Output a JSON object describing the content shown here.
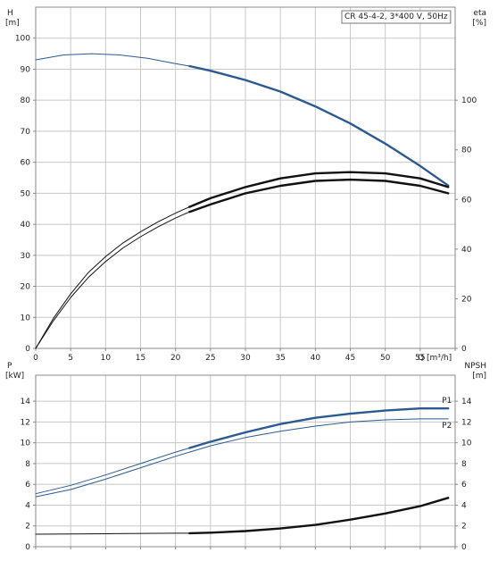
{
  "chart_data": [
    {
      "id": "top",
      "type": "line",
      "title_box": "CR 45-4-2, 3*400 V, 50Hz",
      "xlabel": "Q [m³/h]",
      "x_ticks": [
        0,
        5,
        10,
        15,
        20,
        25,
        30,
        35,
        40,
        45,
        50,
        55
      ],
      "xlim": [
        0,
        60
      ],
      "left_axis": {
        "name": "H",
        "unit": "[m]",
        "ylim": [
          0,
          110
        ],
        "ticks": [
          0,
          10,
          20,
          30,
          40,
          50,
          60,
          70,
          80,
          90,
          100
        ]
      },
      "right_axis": {
        "name": "eta",
        "unit": "[%]",
        "ylim": [
          0,
          137.5
        ],
        "ticks": [
          0,
          20,
          40,
          60,
          80,
          100
        ]
      },
      "grid": true,
      "series": [
        {
          "axis": "left",
          "color": "#2b5a92",
          "bold_from": 22,
          "x": [
            0,
            4,
            8,
            12,
            16,
            20,
            22,
            25,
            30,
            35,
            40,
            45,
            50,
            55,
            59
          ],
          "y": [
            93,
            94.6,
            95,
            94.6,
            93.5,
            91.8,
            91,
            89.5,
            86.5,
            82.8,
            78,
            72.5,
            66,
            58.8,
            52.5
          ]
        },
        {
          "axis": "right",
          "color": "#111111",
          "bold_from": 22,
          "x": [
            0,
            2.5,
            5,
            7.5,
            10,
            12.5,
            15,
            17.5,
            20,
            22,
            25,
            30,
            35,
            40,
            45,
            50,
            55,
            59
          ],
          "y": [
            0,
            11,
            20.5,
            28.5,
            35,
            40.5,
            45,
            49,
            52.5,
            55,
            58,
            62.5,
            65.5,
            67.5,
            68,
            67.5,
            65.5,
            62.5
          ]
        },
        {
          "axis": "right",
          "color": "#111111",
          "bold_from": 22,
          "x": [
            0,
            2.5,
            5,
            7.5,
            10,
            12.5,
            15,
            17.5,
            20,
            22,
            25,
            30,
            35,
            40,
            45,
            50,
            55,
            59
          ],
          "y": [
            0,
            12,
            22,
            30.5,
            37,
            42.5,
            47,
            51,
            54.5,
            57,
            60.5,
            65,
            68.5,
            70.5,
            71,
            70.5,
            68.5,
            65
          ]
        }
      ]
    },
    {
      "id": "bottom",
      "type": "line",
      "xlim": [
        0,
        60
      ],
      "left_axis": {
        "name": "P",
        "unit": "[kW]",
        "ylim": [
          0,
          16.5
        ],
        "ticks": [
          0,
          2,
          4,
          6,
          8,
          10,
          12,
          14
        ]
      },
      "right_axis": {
        "name": "NPSH",
        "unit": "[m]",
        "ylim": [
          0,
          16.5
        ],
        "ticks": [
          0,
          2,
          4,
          6,
          8,
          10,
          12,
          14
        ]
      },
      "grid": true,
      "series": [
        {
          "name": "P1",
          "axis": "left",
          "color": "#2b5a92",
          "bold_from": 22,
          "x": [
            0,
            5,
            10,
            15,
            20,
            22,
            25,
            30,
            35,
            40,
            45,
            50,
            55,
            59
          ],
          "y": [
            5.1,
            5.9,
            6.9,
            8.0,
            9.1,
            9.5,
            10.1,
            11.0,
            11.8,
            12.4,
            12.8,
            13.1,
            13.3,
            13.3
          ]
        },
        {
          "name": "P2",
          "axis": "left",
          "color": "#2b5a92",
          "bold_from": null,
          "x": [
            0,
            5,
            10,
            15,
            20,
            25,
            30,
            35,
            40,
            45,
            50,
            55,
            59
          ],
          "y": [
            4.8,
            5.5,
            6.5,
            7.6,
            8.7,
            9.7,
            10.5,
            11.1,
            11.6,
            12.0,
            12.2,
            12.3,
            12.3
          ]
        },
        {
          "axis": "right",
          "color": "#111111",
          "bold_from": 22,
          "x": [
            0,
            10,
            20,
            22,
            25,
            30,
            35,
            40,
            45,
            50,
            55,
            59
          ],
          "y": [
            1.2,
            1.25,
            1.3,
            1.3,
            1.35,
            1.5,
            1.75,
            2.1,
            2.6,
            3.2,
            3.9,
            4.7
          ]
        }
      ]
    }
  ]
}
